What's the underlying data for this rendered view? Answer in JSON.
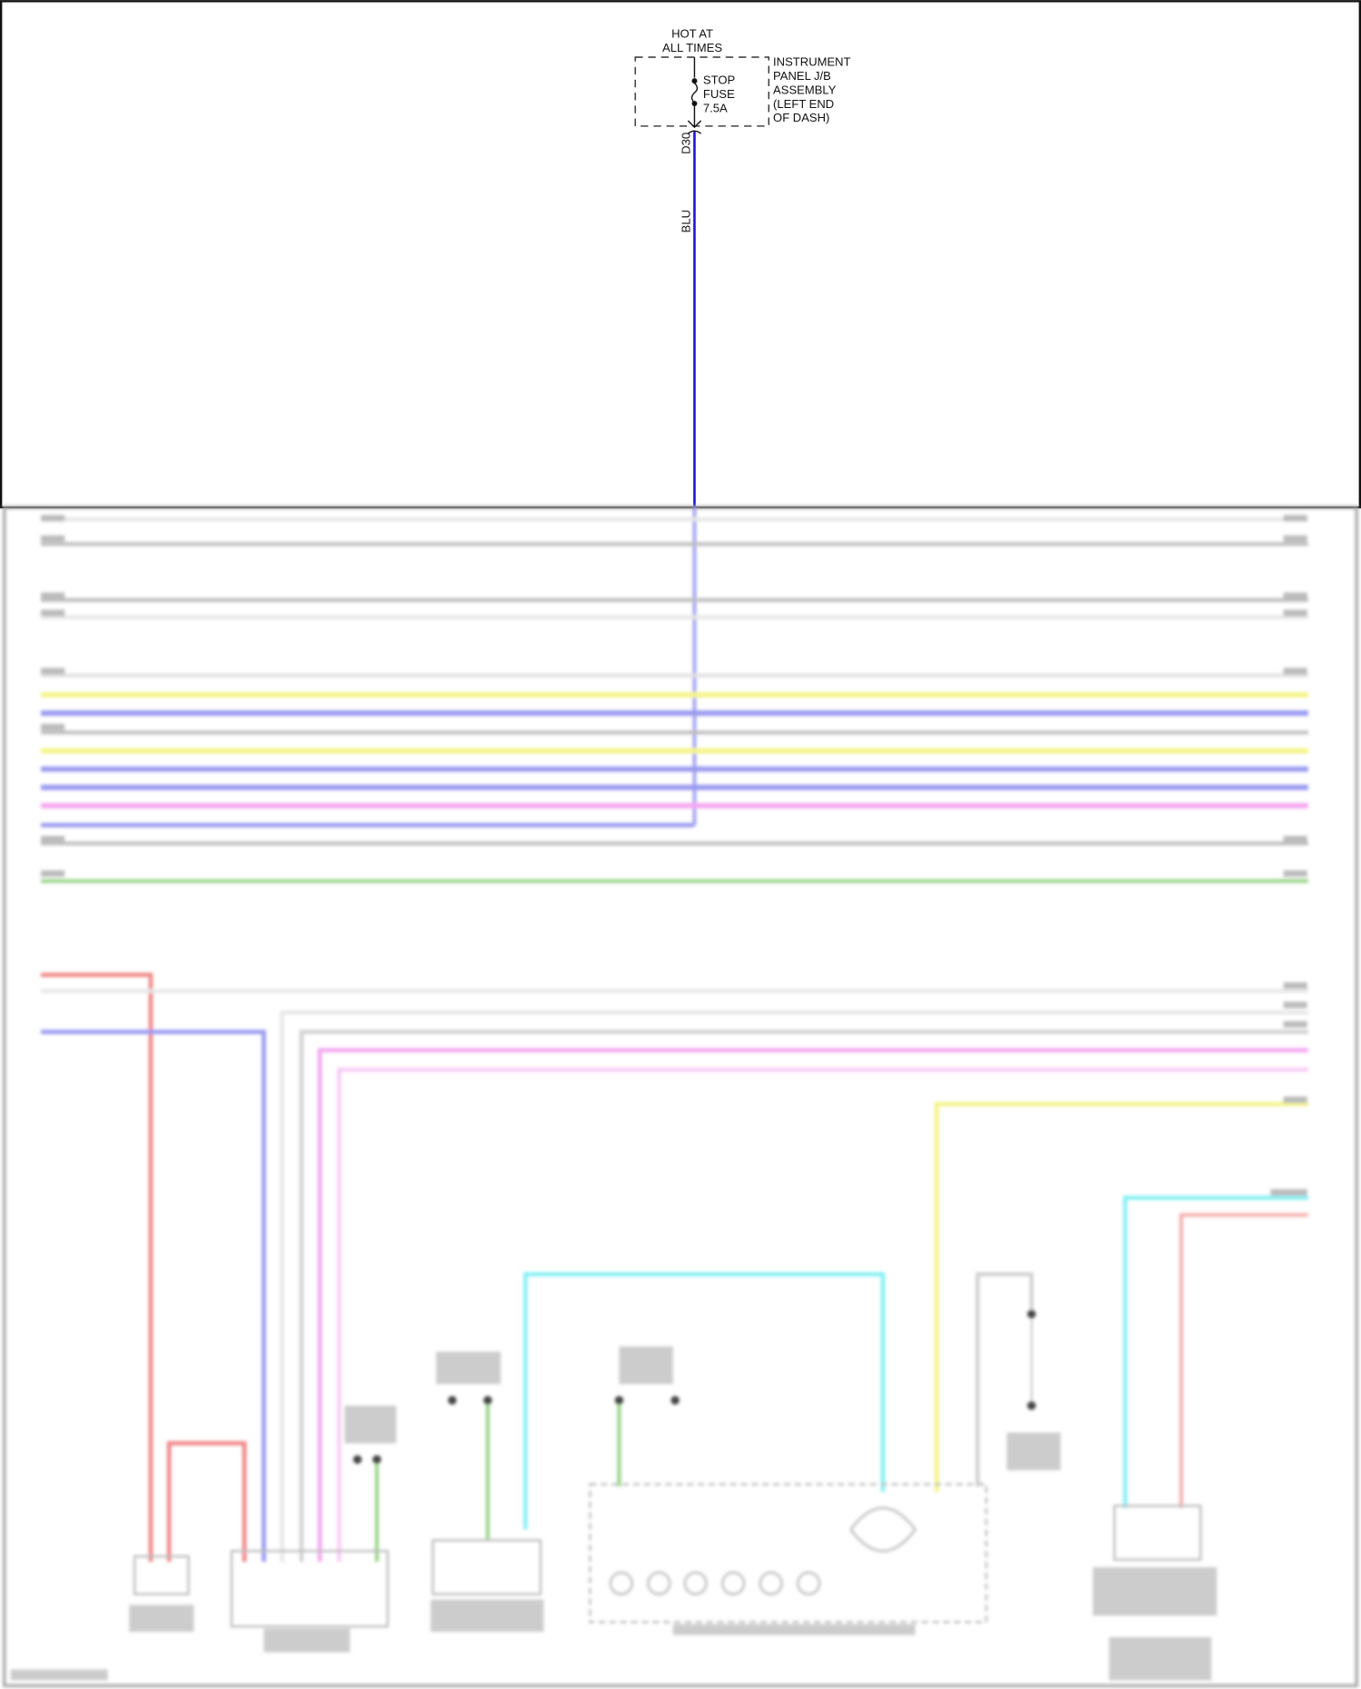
{
  "power_source": {
    "label_line1": "HOT AT",
    "label_line2": "ALL TIMES"
  },
  "fuse": {
    "line1": "STOP",
    "line2": "FUSE",
    "line3": "7.5A"
  },
  "junction_block": {
    "line1": "INSTRUMENT",
    "line2": "PANEL J/B",
    "line3": "ASSEMBLY",
    "line4": "(LEFT END",
    "line5": "OF DASH)"
  },
  "connector": "D30",
  "wire_color_label": "BLU",
  "colors": {
    "blue": "#1a1acc",
    "gray": "#bdbdbd",
    "yellow": "#f4f48a",
    "light_blue": "#9a9af0",
    "pink": "#f4a8f0",
    "green": "#9ad48a",
    "red": "#f08a8a",
    "cyan": "#8af0f4"
  }
}
